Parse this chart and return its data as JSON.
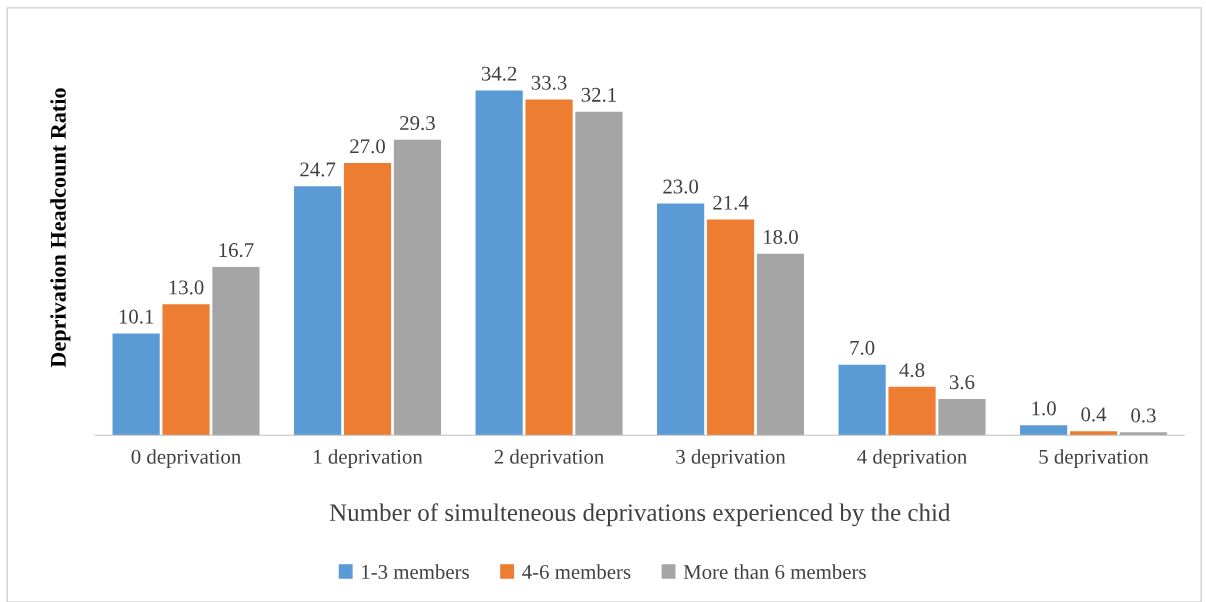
{
  "chart_data": {
    "type": "bar",
    "xlabel": "Number of simulteneous deprivations experienced by the chid",
    "ylabel": "Deprivation Headcount Ratio",
    "categories": [
      "0 deprivation",
      "1 deprivation",
      "2 deprivation",
      "3 deprivation",
      "4 deprivation",
      "5 deprivation"
    ],
    "series": [
      {
        "name": "1-3 members",
        "color": "#5b9bd5",
        "values": [
          10.1,
          24.7,
          34.2,
          23.0,
          7.0,
          1.0
        ],
        "value_labels": [
          "10.1",
          "24.7",
          "34.2",
          "23.0",
          "7.0",
          "1.0"
        ]
      },
      {
        "name": "4-6 members",
        "color": "#ed7d31",
        "values": [
          13.0,
          27.0,
          33.3,
          21.4,
          4.8,
          0.4
        ],
        "value_labels": [
          "13.0",
          "27.0",
          "33.3",
          "21.4",
          "4.8",
          "0.4"
        ]
      },
      {
        "name": "More than 6 members",
        "color": "#a5a5a5",
        "values": [
          16.7,
          29.3,
          32.1,
          18.0,
          3.6,
          0.3
        ],
        "value_labels": [
          "16.7",
          "29.3",
          "32.1",
          "18.0",
          "3.6",
          "0.3"
        ]
      }
    ],
    "grid": false,
    "legend": "bottom"
  }
}
